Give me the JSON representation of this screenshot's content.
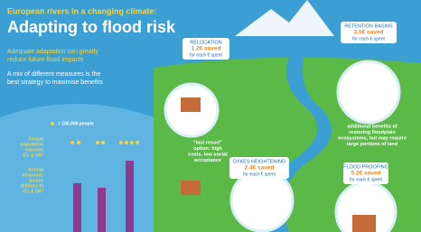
{
  "header": {
    "subtitle": "European rivers in a changing climate:",
    "title": "Adapting to flood risk"
  },
  "intro": {
    "lines": [
      "Adequate adaptation can greatly",
      "reduce future flood impacts"
    ]
  },
  "mix": {
    "lines": [
      "A mix of different measures is the",
      "best strategy to maximise benefits"
    ]
  },
  "legend": {
    "label": "= 100,000 people"
  },
  "indicators": [
    {
      "lines": [
        "Annual",
        "population",
        "exposed",
        "EU & UK*"
      ]
    },
    {
      "lines": [
        "Annual",
        "economic",
        "losses",
        "(billions €)",
        "EU & UK*"
      ]
    }
  ],
  "measures": [
    {
      "name": "RELOCATION",
      "saving": "1.2€ saved",
      "per": "for each € spent",
      "note": [
        "“last resort”",
        "option: high",
        "costs, low social",
        "acceptance"
      ]
    },
    {
      "name": "RETENTION BASINS",
      "saving": "3.5€ saved",
      "per": "for each € spent",
      "note": [
        "additional benefits of",
        "restoring floodplain",
        "ecosystems, but may require",
        "large portions of land"
      ]
    },
    {
      "name": "DYKES HEIGHTENING",
      "saving": "2.4€ saved",
      "per": "for each € spent"
    },
    {
      "name": "FLOOD PROOFING",
      "saving": "5.2€ saved",
      "per": "for each € spent"
    }
  ]
}
